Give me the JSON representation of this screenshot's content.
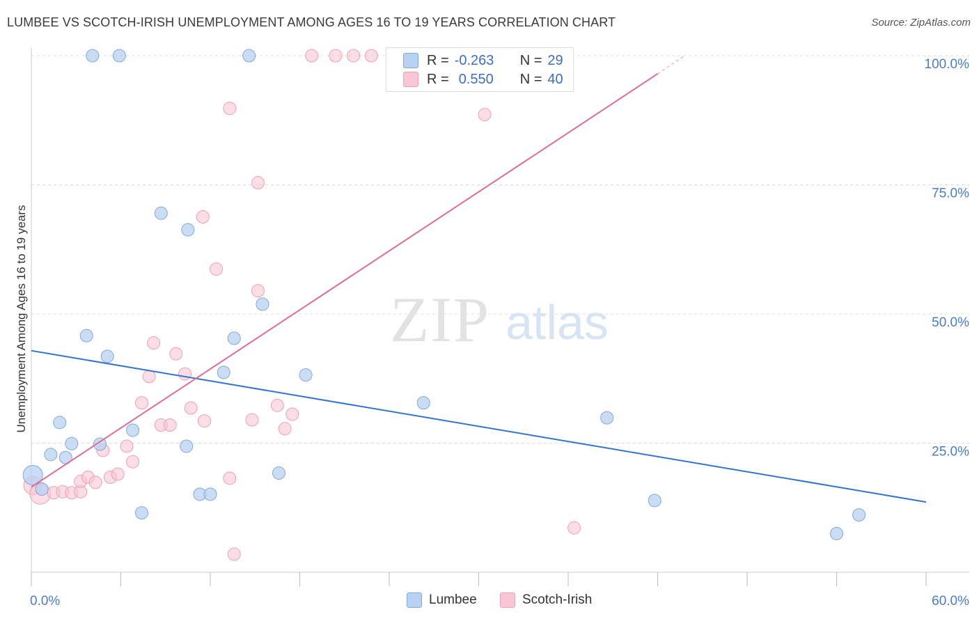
{
  "header": {
    "title": "LUMBEE VS SCOTCH-IRISH UNEMPLOYMENT AMONG AGES 16 TO 19 YEARS CORRELATION CHART",
    "source": "Source: ZipAtlas.com"
  },
  "watermark": {
    "zip": "ZIP",
    "atlas": "atlas"
  },
  "legend": {
    "lumbee": {
      "r_label": "R =",
      "r_value": "-0.263",
      "n_label": "N =",
      "n_value": "29"
    },
    "scotch": {
      "r_label": "R =",
      "r_value": "0.550",
      "n_label": "N =",
      "n_value": "40"
    }
  },
  "bottom_legend": {
    "lumbee": "Lumbee",
    "scotch": "Scotch-Irish"
  },
  "colors": {
    "lumbee_fill": "#b8d2f2",
    "lumbee_stroke": "#7fa8dc",
    "lumbee_line": "#3273d6",
    "scotch_fill": "#f8c6d4",
    "scotch_stroke": "#ee9fb6",
    "scotch_line": "#e06b93",
    "tick_text": "#4a7cc9",
    "grid": "#dcdcdc"
  },
  "chart_data": {
    "type": "scatter",
    "title": "LUMBEE VS SCOTCH-IRISH UNEMPLOYMENT AMONG AGES 16 TO 19 YEARS CORRELATION CHART",
    "xlabel": "",
    "ylabel": "Unemployment Among Ages 16 to 19 years",
    "xlim": [
      0,
      60
    ],
    "ylim": [
      0,
      100
    ],
    "x_tick_labels": [
      "0.0%",
      "60.0%"
    ],
    "y_ticks": [
      25,
      50,
      75,
      100
    ],
    "y_tick_labels": [
      "25.0%",
      "50.0%",
      "75.0%",
      "100.0%"
    ],
    "grid": true,
    "legend_position": "top-center",
    "series": [
      {
        "name": "Lumbee",
        "r": -0.263,
        "n": 29,
        "trend": {
          "x": [
            0,
            60
          ],
          "y": [
            42.9,
            13.6
          ]
        },
        "points": [
          {
            "x": 0.1,
            "y": 18.8,
            "size": 14
          },
          {
            "x": 0.7,
            "y": 16.1,
            "size": 9
          },
          {
            "x": 1.3,
            "y": 22.8,
            "size": 9
          },
          {
            "x": 1.9,
            "y": 29.0,
            "size": 9
          },
          {
            "x": 2.3,
            "y": 22.2,
            "size": 9
          },
          {
            "x": 2.7,
            "y": 24.9,
            "size": 9
          },
          {
            "x": 3.7,
            "y": 45.8,
            "size": 9
          },
          {
            "x": 4.1,
            "y": 100.0,
            "size": 9
          },
          {
            "x": 4.6,
            "y": 24.8,
            "size": 9
          },
          {
            "x": 5.1,
            "y": 41.8,
            "size": 9
          },
          {
            "x": 5.9,
            "y": 100.0,
            "size": 9
          },
          {
            "x": 6.8,
            "y": 27.5,
            "size": 9
          },
          {
            "x": 7.4,
            "y": 11.5,
            "size": 9
          },
          {
            "x": 8.7,
            "y": 69.5,
            "size": 9
          },
          {
            "x": 10.5,
            "y": 66.3,
            "size": 9
          },
          {
            "x": 10.4,
            "y": 24.4,
            "size": 9
          },
          {
            "x": 11.3,
            "y": 15.1,
            "size": 9
          },
          {
            "x": 12.0,
            "y": 15.1,
            "size": 9
          },
          {
            "x": 12.9,
            "y": 38.7,
            "size": 9
          },
          {
            "x": 13.6,
            "y": 45.3,
            "size": 9
          },
          {
            "x": 14.6,
            "y": 100.0,
            "size": 9
          },
          {
            "x": 15.5,
            "y": 51.9,
            "size": 9
          },
          {
            "x": 16.6,
            "y": 19.2,
            "size": 9
          },
          {
            "x": 18.4,
            "y": 38.2,
            "size": 9
          },
          {
            "x": 26.3,
            "y": 32.8,
            "size": 9
          },
          {
            "x": 38.6,
            "y": 29.9,
            "size": 9
          },
          {
            "x": 41.8,
            "y": 13.9,
            "size": 9
          },
          {
            "x": 54.0,
            "y": 7.5,
            "size": 9
          },
          {
            "x": 55.5,
            "y": 11.1,
            "size": 9
          }
        ]
      },
      {
        "name": "Scotch-Irish",
        "r": 0.55,
        "n": 40,
        "trend": {
          "x": [
            0,
            42.0
          ],
          "y": [
            16.5,
            96.5
          ]
        },
        "trend_dashed": {
          "x": [
            42.0,
            43.8
          ],
          "y": [
            96.5,
            100.0
          ]
        },
        "points": [
          {
            "x": 0.1,
            "y": 16.8,
            "size": 13
          },
          {
            "x": 0.6,
            "y": 15.2,
            "size": 15
          },
          {
            "x": 1.5,
            "y": 15.4,
            "size": 9
          },
          {
            "x": 2.1,
            "y": 15.6,
            "size": 9
          },
          {
            "x": 2.7,
            "y": 15.4,
            "size": 9
          },
          {
            "x": 3.3,
            "y": 15.6,
            "size": 9
          },
          {
            "x": 3.3,
            "y": 17.6,
            "size": 9
          },
          {
            "x": 3.8,
            "y": 18.4,
            "size": 9
          },
          {
            "x": 4.3,
            "y": 17.4,
            "size": 9
          },
          {
            "x": 4.8,
            "y": 23.6,
            "size": 9
          },
          {
            "x": 5.3,
            "y": 18.4,
            "size": 9
          },
          {
            "x": 5.8,
            "y": 19.0,
            "size": 9
          },
          {
            "x": 6.4,
            "y": 24.4,
            "size": 9
          },
          {
            "x": 6.8,
            "y": 21.4,
            "size": 9
          },
          {
            "x": 7.4,
            "y": 32.8,
            "size": 9
          },
          {
            "x": 7.9,
            "y": 37.9,
            "size": 9
          },
          {
            "x": 8.2,
            "y": 44.4,
            "size": 9
          },
          {
            "x": 8.7,
            "y": 28.5,
            "size": 9
          },
          {
            "x": 9.3,
            "y": 28.5,
            "size": 9
          },
          {
            "x": 9.7,
            "y": 42.3,
            "size": 9
          },
          {
            "x": 10.3,
            "y": 38.4,
            "size": 9
          },
          {
            "x": 10.7,
            "y": 31.8,
            "size": 9
          },
          {
            "x": 11.5,
            "y": 68.8,
            "size": 9
          },
          {
            "x": 11.6,
            "y": 29.3,
            "size": 9
          },
          {
            "x": 12.4,
            "y": 58.7,
            "size": 9
          },
          {
            "x": 13.3,
            "y": 18.2,
            "size": 9
          },
          {
            "x": 13.3,
            "y": 89.8,
            "size": 9
          },
          {
            "x": 13.6,
            "y": 3.5,
            "size": 9
          },
          {
            "x": 14.8,
            "y": 29.5,
            "size": 9
          },
          {
            "x": 15.2,
            "y": 54.5,
            "size": 9
          },
          {
            "x": 15.2,
            "y": 75.4,
            "size": 9
          },
          {
            "x": 16.5,
            "y": 32.3,
            "size": 9
          },
          {
            "x": 17.0,
            "y": 27.8,
            "size": 9
          },
          {
            "x": 17.5,
            "y": 30.6,
            "size": 9
          },
          {
            "x": 18.8,
            "y": 100.0,
            "size": 9
          },
          {
            "x": 20.4,
            "y": 100.0,
            "size": 9
          },
          {
            "x": 21.6,
            "y": 100.0,
            "size": 9
          },
          {
            "x": 22.8,
            "y": 100.0,
            "size": 9
          },
          {
            "x": 30.4,
            "y": 88.6,
            "size": 9
          },
          {
            "x": 36.4,
            "y": 8.6,
            "size": 9
          }
        ]
      }
    ]
  }
}
